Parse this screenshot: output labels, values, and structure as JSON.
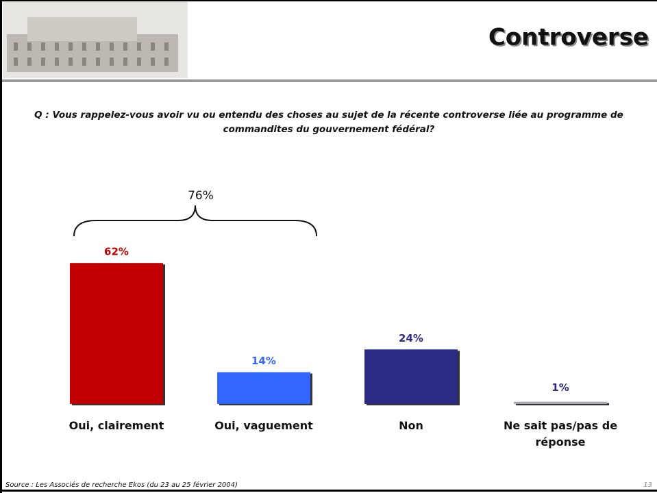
{
  "header": {
    "title": "Controverse"
  },
  "chart_data": {
    "type": "bar",
    "question": "Q : Vous rappelez-vous avoir vu ou entendu des choses au sujet de la récente controverse liée au programme de commandites du gouvernement fédéral?",
    "categories": [
      "Oui, clairement",
      "Oui, vaguement",
      "Non",
      "Ne sait pas/pas de réponse"
    ],
    "values": [
      62,
      14,
      24,
      1
    ],
    "value_labels": [
      "62%",
      "14%",
      "24%",
      "1%"
    ],
    "colors": [
      "#c00000",
      "#3366ff",
      "#2b2b85",
      "#a8a8b0"
    ],
    "label_colors": [
      "#c00000",
      "#3366ff",
      "#2b2b85",
      "#2b2b85"
    ],
    "bracket_label": "76%"
  },
  "footer": {
    "source": "Source : Les Associés de recherche Ekos (du 23 au 25 février 2004)",
    "page": "13"
  }
}
